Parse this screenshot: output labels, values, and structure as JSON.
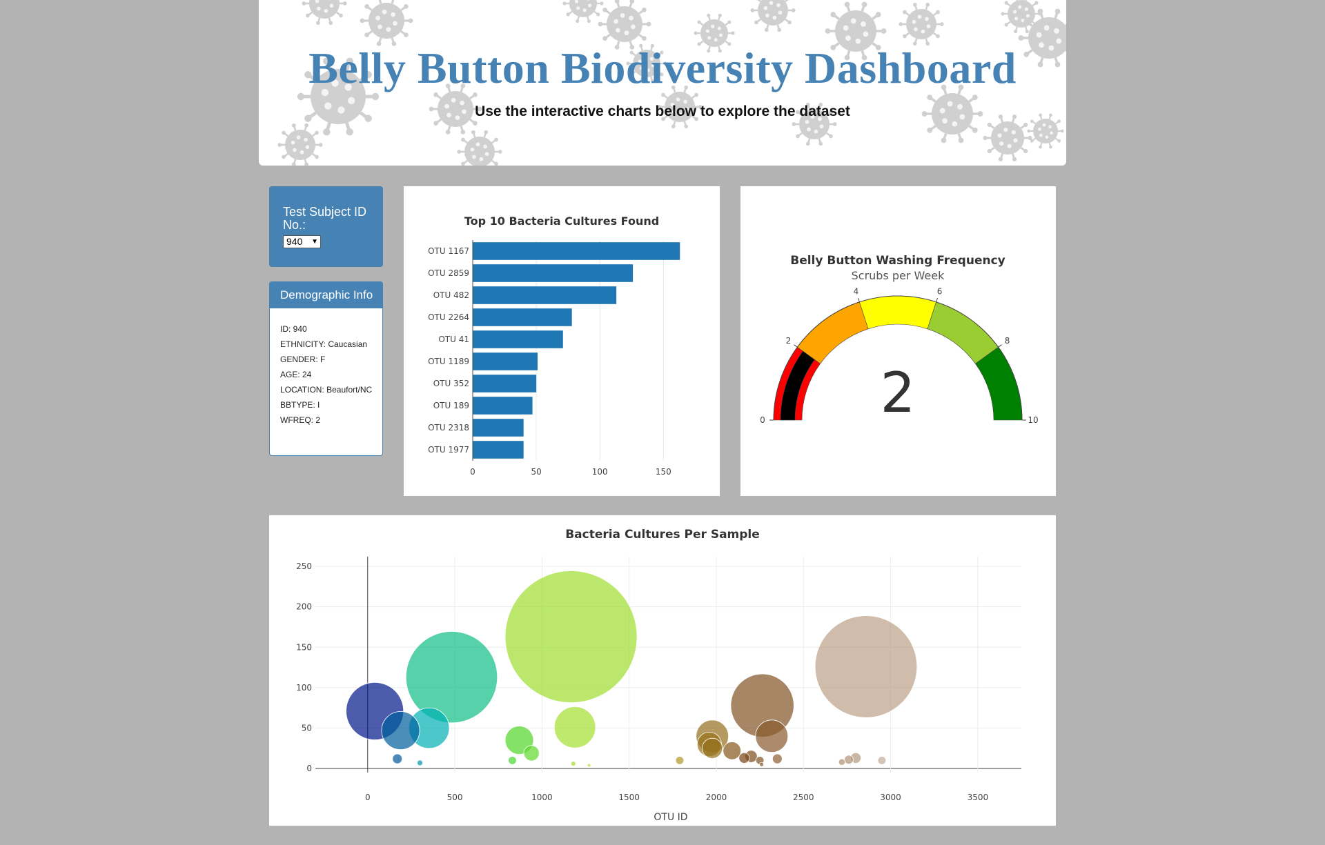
{
  "header": {
    "title": "Belly Button Biodiversity Dashboard",
    "subtitle": "Use the interactive charts below to explore the dataset"
  },
  "selector": {
    "label": "Test Subject ID No.:",
    "selected": "940"
  },
  "demographics": {
    "heading": "Demographic Info",
    "items": [
      "ID: 940",
      "ETHNICITY: Caucasian",
      "GENDER: F",
      "AGE: 24",
      "LOCATION: Beaufort/NC",
      "BBTYPE: I",
      "WFREQ: 2"
    ]
  },
  "colors": {
    "accent": "#4682b4",
    "bar": "#1f77b4",
    "page_bg": "#b3b3b3"
  },
  "chart_data": [
    {
      "type": "bar",
      "orientation": "horizontal",
      "title": "Top 10 Bacteria Cultures Found",
      "categories": [
        "OTU 1167",
        "OTU 2859",
        "OTU 482",
        "OTU 2264",
        "OTU 41",
        "OTU 1189",
        "OTU 352",
        "OTU 189",
        "OTU 2318",
        "OTU 1977"
      ],
      "values": [
        163,
        126,
        113,
        78,
        71,
        51,
        50,
        47,
        40,
        40
      ],
      "xticks": [
        0,
        50,
        100,
        150
      ],
      "xlim": [
        0,
        171
      ],
      "grid": true
    },
    {
      "type": "gauge",
      "title": "Belly Button Washing Frequency",
      "subtitle": "Scrubs per Week",
      "value": 2,
      "range": [
        0,
        10
      ],
      "ticks": [
        0,
        2,
        4,
        6,
        8,
        10
      ],
      "steps": [
        {
          "range": [
            0,
            2
          ],
          "color": "red"
        },
        {
          "range": [
            2,
            4
          ],
          "color": "orange"
        },
        {
          "range": [
            4,
            6
          ],
          "color": "yellow"
        },
        {
          "range": [
            6,
            8
          ],
          "color": "yellowgreen"
        },
        {
          "range": [
            8,
            10
          ],
          "color": "green"
        }
      ],
      "bar_color": "black"
    },
    {
      "type": "scatter",
      "mode": "bubble",
      "title": "Bacteria Cultures Per Sample",
      "xlabel": "OTU ID",
      "ylabel": "",
      "xlim": [
        -300,
        3750
      ],
      "ylim": [
        -5,
        262
      ],
      "xticks": [
        0,
        500,
        1000,
        1500,
        2000,
        2500,
        3000,
        3500
      ],
      "yticks": [
        0,
        50,
        100,
        150,
        200,
        250
      ],
      "colorscale": "Earth",
      "grid": true,
      "x": [
        41,
        189,
        352,
        482,
        1167,
        1189,
        2264,
        2859,
        2318,
        1977,
        870,
        940,
        1977,
        1960,
        2090,
        2200,
        2250,
        2160,
        170,
        300,
        830,
        2260,
        2350,
        1790,
        2800,
        2760,
        2950,
        2720,
        1180,
        1270
      ],
      "y": [
        71,
        47,
        50,
        113,
        163,
        51,
        78,
        126,
        40,
        40,
        35,
        19,
        25,
        30,
        22,
        15,
        10,
        13,
        12,
        7,
        10,
        5,
        12,
        10,
        13,
        11,
        10,
        8,
        6,
        4
      ],
      "sizes": [
        71,
        47,
        50,
        113,
        163,
        51,
        78,
        126,
        40,
        40,
        35,
        19,
        25,
        30,
        22,
        15,
        10,
        13,
        12,
        7,
        10,
        5,
        12,
        10,
        13,
        11,
        10,
        8,
        6,
        4
      ]
    }
  ]
}
